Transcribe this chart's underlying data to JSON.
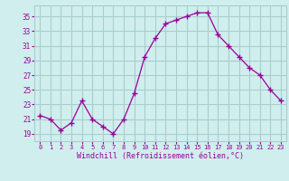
{
  "x": [
    0,
    1,
    2,
    3,
    4,
    5,
    6,
    7,
    8,
    9,
    10,
    11,
    12,
    13,
    14,
    15,
    16,
    17,
    18,
    19,
    20,
    21,
    22,
    23
  ],
  "y": [
    21.5,
    21.0,
    19.5,
    20.5,
    23.5,
    21.0,
    20.0,
    19.0,
    21.0,
    24.5,
    29.5,
    32.0,
    34.0,
    34.5,
    35.0,
    35.5,
    35.5,
    32.5,
    31.0,
    29.5,
    28.0,
    27.0,
    25.0,
    23.5
  ],
  "line_color": "#990099",
  "marker": "+",
  "marker_size": 4,
  "bg_color": "#d0eeee",
  "grid_color": "#aacccc",
  "xlabel": "Windchill (Refroidissement éolien,°C)",
  "xlabel_color": "#990099",
  "tick_color": "#990099",
  "ylabel_ticks": [
    19,
    21,
    23,
    25,
    27,
    29,
    31,
    33,
    35
  ],
  "xlim": [
    -0.5,
    23.5
  ],
  "ylim": [
    18.0,
    36.5
  ],
  "xtick_labels": [
    "0",
    "1",
    "2",
    "3",
    "4",
    "5",
    "6",
    "7",
    "8",
    "9",
    "10",
    "11",
    "12",
    "13",
    "14",
    "15",
    "16",
    "17",
    "18",
    "19",
    "20",
    "21",
    "22",
    "23"
  ]
}
